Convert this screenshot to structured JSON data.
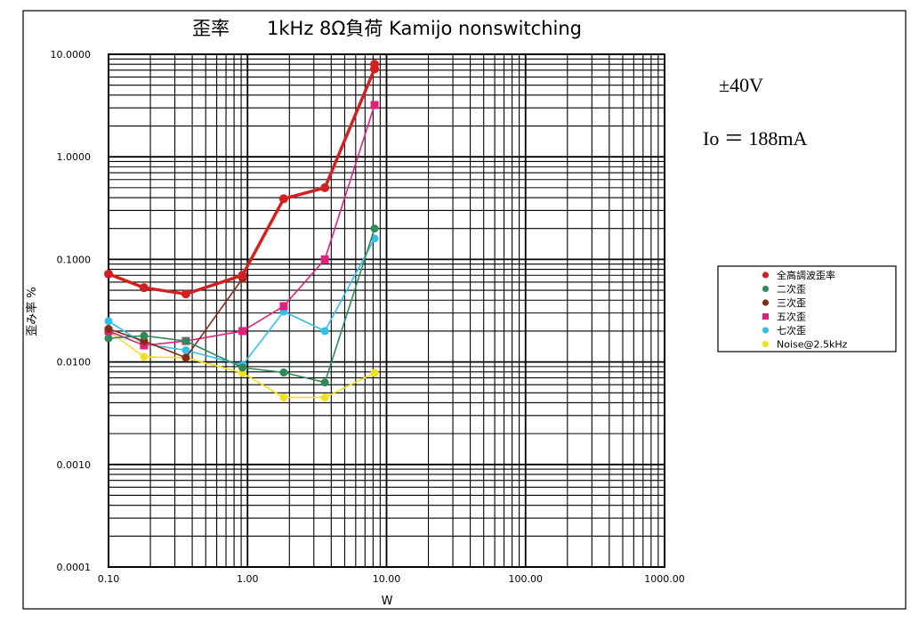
{
  "chart_data": {
    "type": "line",
    "title": "歪率　　1kHz 8Ω負荷 Kamijo nonswitching",
    "xlabel": "W",
    "ylabel": "歪み率 %",
    "x_scale": "log",
    "y_scale": "log",
    "xlim": [
      0.1,
      1000
    ],
    "ylim": [
      0.0001,
      10
    ],
    "x_tick_labels": [
      "0.10",
      "1.00",
      "10.00",
      "100.00",
      "1000.00"
    ],
    "y_tick_labels": [
      "10.0000",
      "1.0000",
      "0.1000",
      "0.0100",
      "0.0010",
      "0.0001"
    ],
    "grid": true,
    "legend_position": "right",
    "annotations": [
      "±40V",
      "Io ＝ 188mA"
    ],
    "series": [
      {
        "name": "全高調波歪率",
        "color": "#d42020",
        "marker": "circle",
        "points": [
          [
            0.1,
            0.072
          ],
          [
            0.18,
            0.053
          ],
          [
            0.36,
            0.046
          ],
          [
            0.92,
            0.07
          ],
          [
            1.82,
            0.39
          ],
          [
            3.6,
            0.5
          ],
          [
            8.2,
            7.2
          ],
          [
            8.2,
            8.0
          ]
        ]
      },
      {
        "name": "二次歪",
        "color": "#2e8b57",
        "marker": "circle",
        "points": [
          [
            0.1,
            0.017
          ],
          [
            0.18,
            0.018
          ],
          [
            0.36,
            0.016
          ],
          [
            0.92,
            0.0088
          ],
          [
            1.82,
            0.0079
          ],
          [
            3.6,
            0.0063
          ],
          [
            8.2,
            0.2
          ]
        ]
      },
      {
        "name": "三次歪",
        "color": "#8b2a10",
        "marker": "circle",
        "points": [
          [
            0.1,
            0.021
          ],
          [
            0.18,
            0.016
          ],
          [
            0.36,
            0.011
          ],
          [
            0.92,
            0.065
          ]
        ]
      },
      {
        "name": "五次歪",
        "color": "#e0207a",
        "marker": "square",
        "points": [
          [
            0.1,
            0.02
          ],
          [
            0.18,
            0.0145
          ],
          [
            0.36,
            0.016
          ],
          [
            0.92,
            0.02
          ],
          [
            1.82,
            0.035
          ],
          [
            3.6,
            0.1
          ],
          [
            8.2,
            3.2
          ]
        ]
      },
      {
        "name": "七次歪",
        "color": "#30c0ec",
        "marker": "circle",
        "points": [
          [
            0.1,
            0.025
          ],
          [
            0.18,
            0.015
          ],
          [
            0.36,
            0.013
          ],
          [
            0.92,
            0.0093
          ],
          [
            1.82,
            0.031
          ],
          [
            3.6,
            0.02
          ],
          [
            8.2,
            0.16
          ]
        ]
      },
      {
        "name": "Noise@2.5kHz",
        "color": "#f0e020",
        "marker": "circle",
        "points": [
          [
            0.1,
            0.02
          ],
          [
            0.18,
            0.0112
          ],
          [
            0.36,
            0.011
          ],
          [
            0.92,
            0.0078
          ],
          [
            1.82,
            0.0045
          ],
          [
            3.6,
            0.0045
          ],
          [
            8.2,
            0.0078
          ]
        ]
      }
    ]
  }
}
